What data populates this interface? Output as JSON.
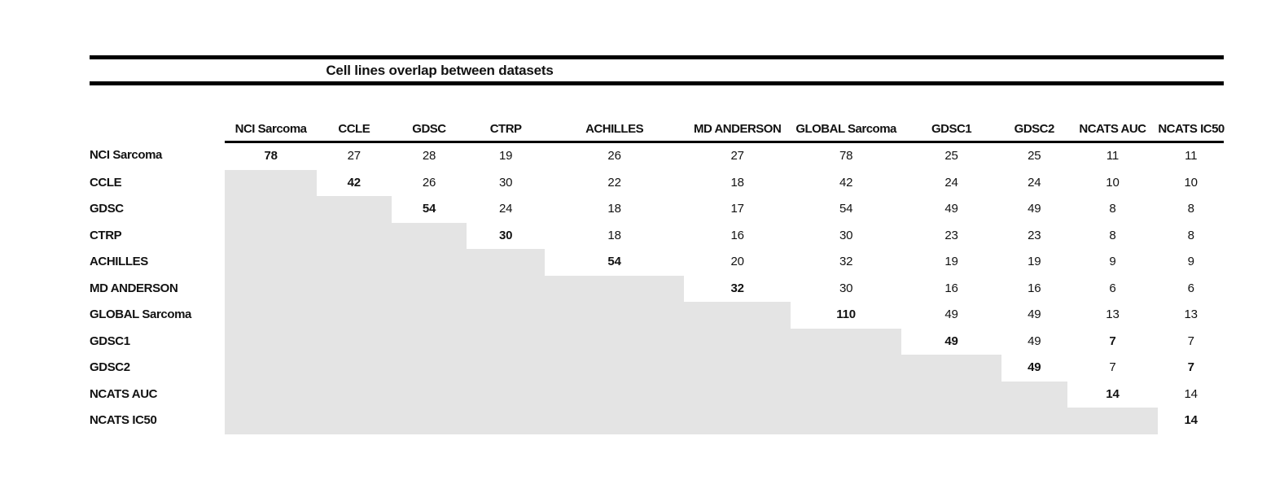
{
  "title": "Cell lines overlap between datasets",
  "colors": {
    "shade": "#e4e4e4",
    "rule": "#000000",
    "text": "#121212"
  },
  "matrix": {
    "columns": [
      "NCI Sarcoma",
      "CCLE",
      "GDSC",
      "CTRP",
      "ACHILLES",
      "MD ANDERSON",
      "GLOBAL Sarcoma",
      "GDSC1",
      "GDSC2",
      "NCATS AUC",
      "NCATS IC50"
    ],
    "rows": [
      {
        "label": "NCI Sarcoma",
        "cells": [
          "78",
          "27",
          "28",
          "19",
          "26",
          "27",
          "78",
          "25",
          "25",
          "11",
          "11"
        ]
      },
      {
        "label": "CCLE",
        "cells": [
          "",
          "42",
          "26",
          "30",
          "22",
          "18",
          "42",
          "24",
          "24",
          "10",
          "10"
        ]
      },
      {
        "label": "GDSC",
        "cells": [
          "",
          "",
          "54",
          "24",
          "18",
          "17",
          "54",
          "49",
          "49",
          "8",
          "8"
        ]
      },
      {
        "label": "CTRP",
        "cells": [
          "",
          "",
          "",
          "30",
          "18",
          "16",
          "30",
          "23",
          "23",
          "8",
          "8"
        ]
      },
      {
        "label": "ACHILLES",
        "cells": [
          "",
          "",
          "",
          "",
          "54",
          "20",
          "32",
          "19",
          "19",
          "9",
          "9"
        ]
      },
      {
        "label": "MD ANDERSON",
        "cells": [
          "",
          "",
          "",
          "",
          "",
          "32",
          "30",
          "16",
          "16",
          "6",
          "6"
        ]
      },
      {
        "label": "GLOBAL Sarcoma",
        "cells": [
          "",
          "",
          "",
          "",
          "",
          "",
          "110",
          "49",
          "49",
          "13",
          "13"
        ]
      },
      {
        "label": "GDSC1",
        "cells": [
          "",
          "",
          "",
          "",
          "",
          "",
          "",
          "49",
          "49",
          "7",
          "7"
        ]
      },
      {
        "label": "GDSC2",
        "cells": [
          "",
          "",
          "",
          "",
          "",
          "",
          "",
          "",
          "49",
          "7",
          "7"
        ]
      },
      {
        "label": "NCATS AUC",
        "cells": [
          "",
          "",
          "",
          "",
          "",
          "",
          "",
          "",
          "",
          "14",
          "14"
        ]
      },
      {
        "label": "NCATS IC50",
        "cells": [
          "",
          "",
          "",
          "",
          "",
          "",
          "",
          "",
          "",
          "",
          "14"
        ]
      }
    ],
    "bold_cells": [
      [
        0,
        0
      ],
      [
        1,
        1
      ],
      [
        2,
        2
      ],
      [
        3,
        3
      ],
      [
        4,
        4
      ],
      [
        5,
        5
      ],
      [
        6,
        6
      ],
      [
        7,
        7
      ],
      [
        7,
        9
      ],
      [
        8,
        8
      ],
      [
        8,
        10
      ],
      [
        9,
        9
      ],
      [
        10,
        10
      ]
    ],
    "shading": "strict-lower-triangle"
  }
}
